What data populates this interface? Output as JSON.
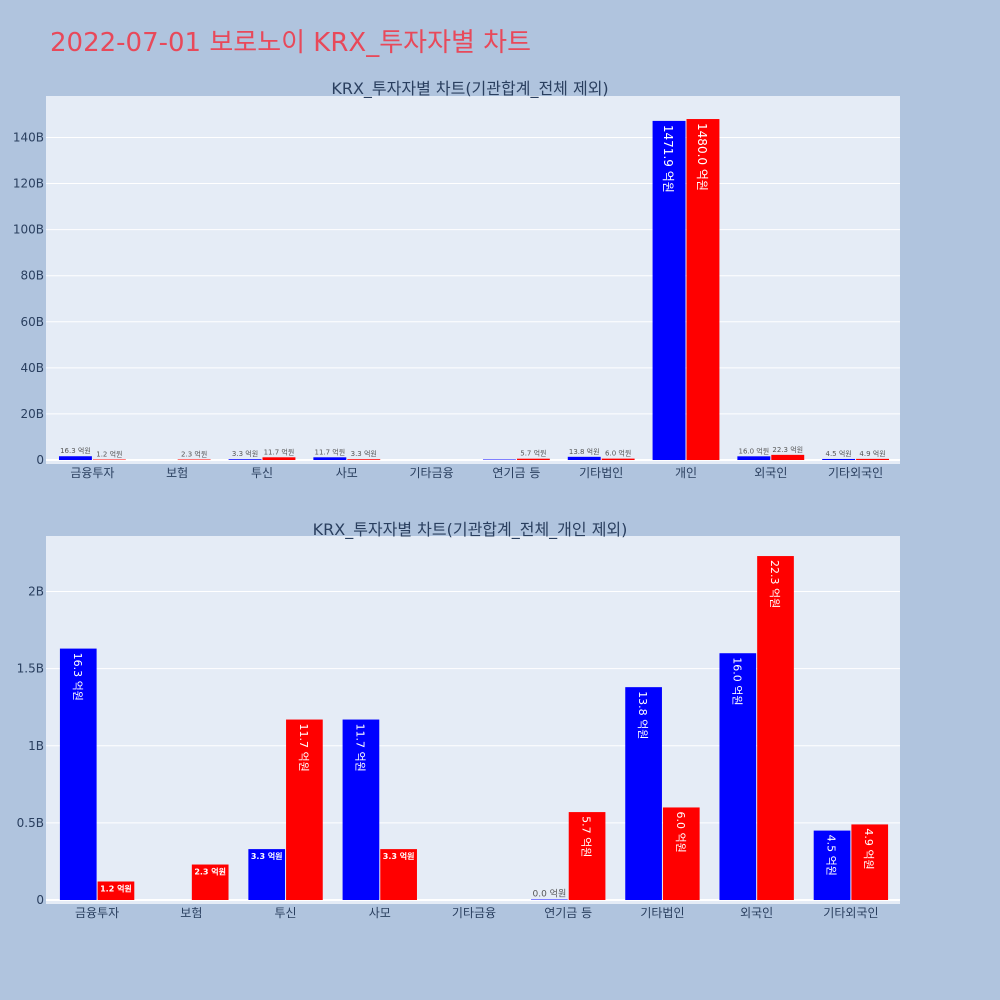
{
  "title": "2022-07-01 보로노이 KRX_투자자별 차트",
  "colors": {
    "buy": "#0000ff",
    "sell": "#ff0000",
    "plot_bg": "#e5ecf6",
    "page_bg": "#b0c4de",
    "title": "#e8495a"
  },
  "chart_data": [
    {
      "type": "bar",
      "title": "KRX_투자자별 차트(기관합계_전체 제외)",
      "categories": [
        "금융투자",
        "보험",
        "투신",
        "사모",
        "기타금융",
        "연기금 등",
        "기타법인",
        "개인",
        "외국인",
        "기타외국인"
      ],
      "ylim": [
        0,
        158
      ],
      "yticks": [
        0,
        20,
        40,
        60,
        80,
        100,
        120,
        140
      ],
      "ytick_labels": [
        "0",
        "20B",
        "40B",
        "60B",
        "80B",
        "100B",
        "120B",
        "140B"
      ],
      "grid": true,
      "series": [
        {
          "color": "#0000ff",
          "values": [
            1.63,
            null,
            0.33,
            1.17,
            null,
            0,
            1.38,
            147.19,
            1.6,
            0.45
          ],
          "labels": [
            "16.3 억원",
            "",
            "3.3 억원",
            "11.7 억원",
            "",
            "",
            "13.8 억원",
            "1471.9 억원",
            "16.0 억원",
            "4.5 억원"
          ]
        },
        {
          "color": "#ff0000",
          "values": [
            0.12,
            0.23,
            1.17,
            0.33,
            null,
            0.57,
            0.6,
            148.0,
            2.23,
            0.49
          ],
          "labels": [
            "1.2 억원",
            "2.3 억원",
            "11.7 억원",
            "3.3 억원",
            "",
            "5.7 억원",
            "6.0 억원",
            "1480.0 억원",
            "22.3 억원",
            "4.9 억원"
          ]
        }
      ]
    },
    {
      "type": "bar",
      "title": "KRX_투자자별 차트(기관합계_전체_개인 제외)",
      "categories": [
        "금융투자",
        "보험",
        "투신",
        "사모",
        "기타금융",
        "연기금 등",
        "기타법인",
        "외국인",
        "기타외국인"
      ],
      "ylim": [
        0,
        2.36
      ],
      "yticks": [
        0,
        0.5,
        1,
        1.5,
        2
      ],
      "ytick_labels": [
        "0",
        "0.5B",
        "1B",
        "1.5B",
        "2B"
      ],
      "grid": true,
      "series": [
        {
          "color": "#0000ff",
          "values": [
            1.63,
            null,
            0.33,
            1.17,
            null,
            0,
            1.38,
            1.6,
            0.45
          ],
          "labels": [
            "16.3 억원",
            "",
            "3.3 억원",
            "11.7 억원",
            "",
            "0.0 억원",
            "13.8 억원",
            "16.0 억원",
            "4.5 억원"
          ]
        },
        {
          "color": "#ff0000",
          "values": [
            0.12,
            0.23,
            1.17,
            0.33,
            null,
            0.57,
            0.6,
            2.23,
            0.49
          ],
          "labels": [
            "1.2 억원",
            "2.3 억원",
            "11.7 억원",
            "3.3 억원",
            "",
            "5.7 억원",
            "6.0 억원",
            "22.3 억원",
            "4.9 억원"
          ]
        }
      ]
    }
  ]
}
